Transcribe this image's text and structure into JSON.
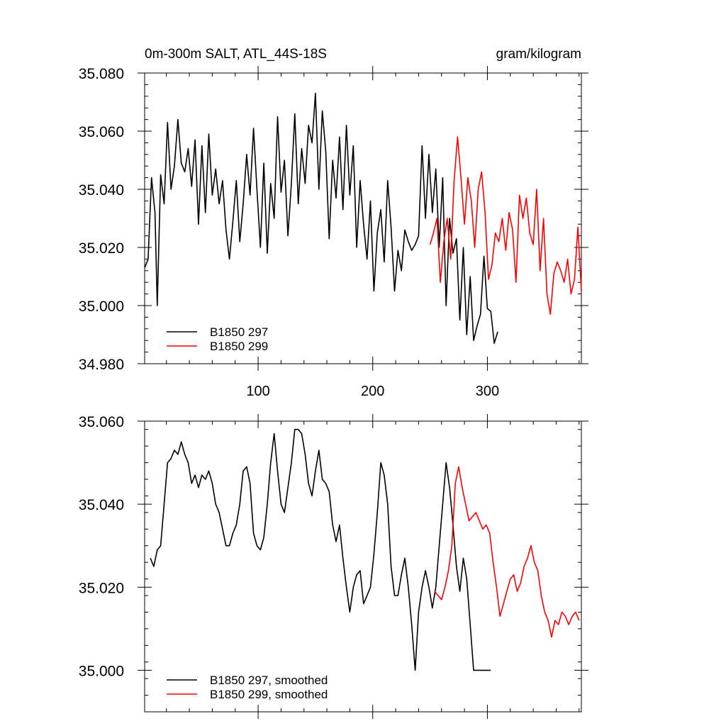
{
  "title_left": "0m-300m SALT, ATL_44S-18S",
  "title_right": "gram/kilogram",
  "colors": {
    "series_a": "#000000",
    "series_b": "#ff0000"
  },
  "chart_data": [
    {
      "type": "line",
      "xlim": [
        1,
        382
      ],
      "ylim": [
        34.98,
        35.08
      ],
      "xticks": [
        100,
        200,
        300
      ],
      "xtick_labels": [
        "100",
        "200",
        "300"
      ],
      "yticks": [
        34.98,
        35.0,
        35.02,
        35.04,
        35.06,
        35.08
      ],
      "ytick_labels": [
        "34.980",
        "35.000",
        "35.020",
        "35.040",
        "35.060",
        "35.080"
      ],
      "legend": "bottom-left",
      "series": [
        {
          "name": "B1850 297",
          "color": "#000000",
          "x": [
            1,
            4,
            7,
            10,
            12,
            15,
            18,
            21,
            24,
            27,
            30,
            33,
            36,
            39,
            42,
            45,
            48,
            51,
            54,
            57,
            60,
            63,
            66,
            69,
            72,
            75,
            78,
            81,
            84,
            87,
            90,
            93,
            96,
            99,
            102,
            105,
            108,
            111,
            114,
            117,
            120,
            123,
            126,
            129,
            132,
            135,
            138,
            141,
            144,
            147,
            150,
            153,
            156,
            159,
            162,
            165,
            168,
            171,
            174,
            177,
            180,
            183,
            186,
            189,
            192,
            195,
            198,
            201,
            204,
            207,
            210,
            213,
            216,
            219,
            222,
            225,
            228,
            231,
            234,
            237,
            240,
            243,
            246,
            249,
            252,
            255,
            258,
            261,
            264,
            267,
            270,
            273,
            276,
            279,
            282,
            285,
            288,
            291,
            294,
            297,
            300,
            303,
            306,
            309
          ],
          "y": [
            35.013,
            35.016,
            35.044,
            35.032,
            35.0,
            35.045,
            35.035,
            35.063,
            35.04,
            35.048,
            35.064,
            35.049,
            35.046,
            35.054,
            35.041,
            35.057,
            35.028,
            35.055,
            35.032,
            35.059,
            35.038,
            35.047,
            35.035,
            35.043,
            35.026,
            35.016,
            35.029,
            35.043,
            35.022,
            35.035,
            35.052,
            35.038,
            35.061,
            35.04,
            35.02,
            35.049,
            35.018,
            35.042,
            35.03,
            35.065,
            35.039,
            35.05,
            35.024,
            35.042,
            35.066,
            35.035,
            35.054,
            35.042,
            35.062,
            35.056,
            35.073,
            35.04,
            35.067,
            35.053,
            35.023,
            35.05,
            35.037,
            35.058,
            35.033,
            35.062,
            35.038,
            35.055,
            35.02,
            35.043,
            35.028,
            35.016,
            35.036,
            35.005,
            35.025,
            35.033,
            35.015,
            35.043,
            35.027,
            35.005,
            35.019,
            35.012,
            35.026,
            35.022,
            35.019,
            35.021,
            35.024,
            35.055,
            35.03,
            35.052,
            35.032,
            35.047,
            35.02,
            35.044,
            35.0,
            35.03,
            35.018,
            35.023,
            34.995,
            35.02,
            34.99,
            35.01,
            34.988,
            34.993,
            34.997,
            35.017,
            34.999,
            34.998,
            34.987,
            34.991
          ]
        },
        {
          "name": "B1850 299",
          "color": "#ff0000",
          "x": [
            250,
            253,
            256,
            259,
            262,
            265,
            268,
            271,
            274,
            277,
            280,
            283,
            286,
            289,
            292,
            295,
            298,
            301,
            304,
            307,
            310,
            313,
            316,
            319,
            322,
            325,
            328,
            331,
            334,
            337,
            340,
            343,
            346,
            349,
            352,
            355,
            358,
            361,
            364,
            367,
            370,
            373,
            376,
            379,
            382
          ],
          "y": [
            35.021,
            35.025,
            35.03,
            35.008,
            35.022,
            35.03,
            35.016,
            35.043,
            35.058,
            35.044,
            35.028,
            35.044,
            35.036,
            35.02,
            35.04,
            35.046,
            35.032,
            35.009,
            35.014,
            35.025,
            35.022,
            35.03,
            35.019,
            35.032,
            35.026,
            35.008,
            35.038,
            35.03,
            35.037,
            35.025,
            35.021,
            35.04,
            35.012,
            35.03,
            35.004,
            34.997,
            35.011,
            35.015,
            35.012,
            35.008,
            35.016,
            35.004,
            35.009,
            35.027,
            35.005
          ]
        }
      ]
    },
    {
      "type": "line",
      "xlim": [
        1,
        382
      ],
      "ylim": [
        34.99,
        35.06
      ],
      "xticks": [
        100,
        200,
        300
      ],
      "xtick_labels": [],
      "yticks": [
        35.0,
        35.02,
        35.04,
        35.06
      ],
      "ytick_labels": [
        "35.000",
        "35.020",
        "35.040",
        "35.060"
      ],
      "legend": "bottom-left",
      "series": [
        {
          "name": "B1850 297, smoothed",
          "color": "#000000",
          "x": [
            6,
            9,
            12,
            15,
            18,
            21,
            24,
            27,
            30,
            33,
            36,
            39,
            42,
            45,
            48,
            51,
            54,
            57,
            60,
            63,
            66,
            69,
            72,
            75,
            78,
            81,
            84,
            87,
            90,
            93,
            96,
            99,
            102,
            105,
            108,
            111,
            114,
            117,
            120,
            123,
            126,
            129,
            132,
            135,
            138,
            141,
            144,
            147,
            150,
            153,
            156,
            159,
            162,
            165,
            168,
            171,
            174,
            177,
            180,
            183,
            186,
            189,
            192,
            195,
            198,
            201,
            204,
            207,
            210,
            213,
            216,
            219,
            222,
            225,
            228,
            231,
            234,
            237,
            240,
            243,
            246,
            249,
            252,
            255,
            258,
            261,
            264,
            267,
            270,
            273,
            276,
            279,
            282,
            285,
            288,
            291,
            294,
            297,
            300,
            303
          ],
          "y": [
            35.027,
            35.025,
            35.029,
            35.03,
            35.04,
            35.05,
            35.051,
            35.053,
            35.052,
            35.055,
            35.052,
            35.05,
            35.045,
            35.047,
            35.044,
            35.047,
            35.046,
            35.048,
            35.045,
            35.04,
            35.038,
            35.034,
            35.03,
            35.03,
            35.033,
            35.035,
            35.04,
            35.048,
            35.049,
            35.045,
            35.033,
            35.03,
            35.029,
            35.032,
            35.04,
            35.05,
            35.057,
            35.048,
            35.04,
            35.038,
            35.044,
            35.05,
            35.058,
            35.058,
            35.057,
            35.052,
            35.045,
            35.042,
            35.048,
            35.053,
            35.046,
            35.045,
            35.043,
            35.035,
            35.031,
            35.035,
            35.027,
            35.02,
            35.014,
            35.02,
            35.023,
            35.024,
            35.016,
            35.018,
            35.02,
            35.028,
            35.038,
            35.05,
            35.047,
            35.04,
            35.025,
            35.018,
            35.018,
            35.023,
            35.027,
            35.02,
            35.011,
            35.0,
            35.014,
            35.02,
            35.024,
            35.02,
            35.015,
            35.02,
            35.03,
            35.04,
            35.05,
            35.044,
            35.035,
            35.025,
            35.019,
            35.027,
            35.022,
            35.011,
            35.0,
            35.0,
            35.0,
            35.0,
            35.0,
            35.0
          ],
          "x_end": 303
        },
        {
          "name": "B1850 299, smoothed",
          "color": "#ff0000",
          "x": [
            254,
            257,
            260,
            263,
            266,
            269,
            272,
            275,
            278,
            281,
            284,
            287,
            290,
            293,
            296,
            299,
            302,
            305,
            308,
            311,
            314,
            317,
            320,
            323,
            326,
            329,
            332,
            335,
            338,
            341,
            344,
            347,
            350,
            353,
            356,
            359,
            362,
            365,
            368,
            371,
            374,
            377,
            380
          ],
          "y": [
            35.019,
            35.018,
            35.017,
            35.02,
            35.024,
            35.03,
            35.045,
            35.049,
            35.044,
            35.04,
            35.036,
            35.037,
            35.038,
            35.036,
            35.034,
            35.035,
            35.033,
            35.026,
            35.02,
            35.013,
            35.016,
            35.019,
            35.022,
            35.023,
            35.019,
            35.021,
            35.025,
            35.027,
            35.03,
            35.026,
            35.024,
            35.018,
            35.014,
            35.012,
            35.008,
            35.012,
            35.011,
            35.014,
            35.013,
            35.011,
            35.013,
            35.014,
            35.012
          ]
        }
      ]
    }
  ]
}
